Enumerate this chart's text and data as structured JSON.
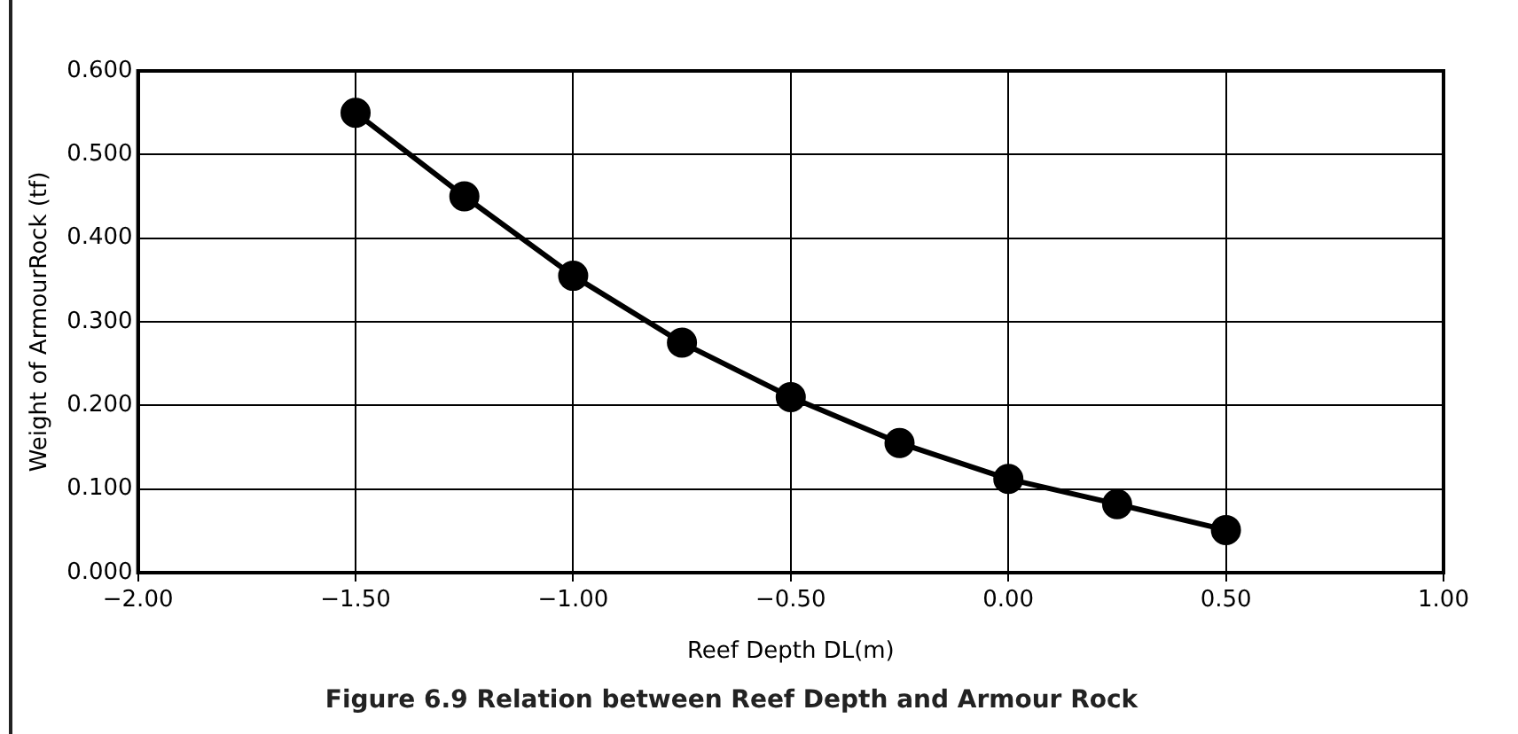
{
  "chart_data": {
    "type": "line",
    "title": "Figure 6.9 Relation between Reef Depth and Armour Rock",
    "xlabel": "Reef Depth DL(m)",
    "ylabel": "Weight of ArmourRock (tf)",
    "x": [
      -1.5,
      -1.25,
      -1.0,
      -0.75,
      -0.5,
      -0.25,
      0,
      0.25,
      0.5
    ],
    "series": [
      {
        "color": "#000000",
        "values": [
          0.55,
          0.45,
          0.355,
          0.275,
          0.21,
          0.155,
          0.112,
          0.082,
          0.051
        ]
      }
    ],
    "xlim": [
      -2,
      1
    ],
    "ylim": [
      0,
      0.6
    ],
    "xticks": [
      {
        "value": -2,
        "label": "−2.00"
      },
      {
        "value": -1.5,
        "label": "−1.50"
      },
      {
        "value": -1,
        "label": "−1.00"
      },
      {
        "value": -0.5,
        "label": "−0.50"
      },
      {
        "value": 0,
        "label": "0.00"
      },
      {
        "value": 0.5,
        "label": "0.50"
      },
      {
        "value": 1,
        "label": "1.00"
      }
    ],
    "yticks": [
      {
        "value": 0,
        "label": "0.000"
      },
      {
        "value": 0.1,
        "label": "0.100"
      },
      {
        "value": 0.2,
        "label": "0.200"
      },
      {
        "value": 0.3,
        "label": "0.300"
      },
      {
        "value": 0.4,
        "label": "0.400"
      },
      {
        "value": 0.5,
        "label": "0.500"
      },
      {
        "value": 0.6,
        "label": "0.600"
      }
    ],
    "grid": true,
    "legend": false,
    "marker": "circle",
    "line_style": "solid"
  }
}
